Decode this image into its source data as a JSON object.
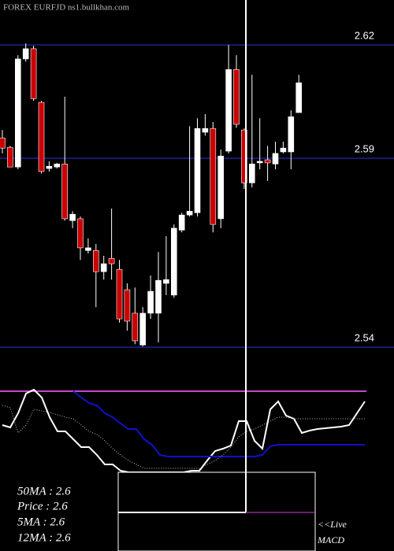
{
  "chart_data": {
    "type": "candlestick",
    "title": "FOREX  EURFJD ns1.bullkhan.com",
    "ylim": [
      2.5319,
      2.6319
    ],
    "yticks": [
      2.54,
      2.59,
      2.62
    ],
    "grid": true,
    "up_color": "#ffffff",
    "down_color": "#cc0000",
    "grid_color": "#1a1a70",
    "open": [
      2.5954,
      2.5929,
      2.5877,
      2.6163,
      2.619,
      2.6048,
      2.5873,
      2.5877,
      2.5885,
      2.5735,
      2.574,
      2.5656,
      2.5656,
      2.56,
      2.5635,
      2.5606,
      2.5552,
      2.549,
      2.5406,
      2.549,
      2.549,
      2.5569,
      2.5538,
      2.571,
      2.575,
      2.5756,
      2.5969,
      2.5979,
      2.574,
      2.5919,
      2.6135,
      2.5975,
      2.5835,
      2.5888,
      2.5896,
      2.5885,
      2.5917,
      2.5917,
      2.6021
    ],
    "high": [
      2.5975,
      2.5933,
      2.6173,
      2.6204,
      2.6198,
      2.6052,
      2.5892,
      2.5888,
      2.6063,
      2.576,
      2.5746,
      2.5688,
      2.5673,
      2.5642,
      2.5767,
      2.5631,
      2.5569,
      2.5558,
      2.5506,
      2.559,
      2.5652,
      2.5694,
      2.5725,
      2.5756,
      2.5985,
      2.6006,
      2.6017,
      2.5996,
      2.5923,
      2.62,
      2.6173,
      2.5979,
      2.6121,
      2.6006,
      2.5933,
      2.5944,
      2.5944,
      2.6027,
      2.6121
    ],
    "low": [
      2.5913,
      2.5877,
      2.5871,
      2.6156,
      2.6052,
      2.586,
      2.5865,
      2.5873,
      2.5735,
      2.5715,
      2.5631,
      2.5648,
      2.5506,
      2.5579,
      2.5579,
      2.5465,
      2.5444,
      2.5408,
      2.5402,
      2.5475,
      2.5413,
      2.5538,
      2.5531,
      2.5704,
      2.5746,
      2.5746,
      2.596,
      2.5704,
      2.5715,
      2.5913,
      2.5981,
      2.5819,
      2.5823,
      2.5871,
      2.584,
      2.5871,
      2.5913,
      2.5871,
      2.6021
    ],
    "close": [
      2.5927,
      2.5877,
      2.6163,
      2.619,
      2.6058,
      2.5865,
      2.5879,
      2.5885,
      2.574,
      2.5752,
      2.5663,
      2.5663,
      2.56,
      2.5621,
      2.5621,
      2.5475,
      2.5469,
      2.5417,
      2.549,
      2.5548,
      2.5577,
      2.5579,
      2.5715,
      2.575,
      2.576,
      2.5979,
      2.5979,
      2.5725,
      2.5906,
      2.6135,
      2.599,
      2.5835,
      2.5885,
      2.5892,
      2.5888,
      2.5913,
      2.5927,
      2.601,
      2.61
    ],
    "indicator": {
      "type": "line",
      "ylim": [
        -20,
        100
      ],
      "level": 93,
      "level_color": "#cc44cc",
      "series": [
        {
          "color": "#ffffff",
          "style": "solid",
          "values": [
            50,
            47,
            65,
            90,
            95,
            85,
            60,
            42,
            42,
            32,
            22,
            22,
            12,
            0,
            0,
            -8,
            -10,
            -10,
            -10,
            -10,
            -10,
            -10,
            -10,
            -10,
            -8,
            -8,
            5,
            17,
            20,
            24,
            55,
            55,
            30,
            20,
            70,
            80,
            62,
            58,
            40,
            43,
            45,
            46,
            47,
            48,
            50,
            65,
            80
          ]
        },
        {
          "color": "#1010cc",
          "style": "solid",
          "values": [
            null,
            null,
            null,
            null,
            null,
            null,
            null,
            null,
            null,
            93,
            85,
            78,
            75,
            65,
            60,
            52,
            45,
            45,
            32,
            25,
            12,
            10,
            10,
            10,
            10,
            10,
            10,
            10,
            10,
            10,
            10,
            10,
            10,
            12,
            23,
            25,
            25,
            25,
            25,
            25,
            25,
            25,
            25,
            25,
            25,
            25,
            25
          ]
        },
        {
          "color": "#bbbbbb",
          "style": "dotted",
          "values": [
            75,
            72,
            40,
            50,
            70,
            68,
            66,
            63,
            60,
            58,
            50,
            42,
            38,
            30,
            20,
            12,
            5,
            0,
            -5,
            -5,
            -5,
            -5,
            -5,
            -5,
            -5,
            -5,
            0,
            5,
            12,
            22,
            35,
            42,
            45,
            50,
            55,
            60,
            60,
            58,
            58,
            58,
            58,
            58,
            58,
            58,
            58,
            58,
            58
          ]
        }
      ]
    },
    "stats": [
      "50MA : 2.6",
      "Price  : 2.6",
      "5MA : 2.6",
      "12MA : 2.6"
    ],
    "live_label": [
      "<<Live",
      "MACD"
    ]
  }
}
